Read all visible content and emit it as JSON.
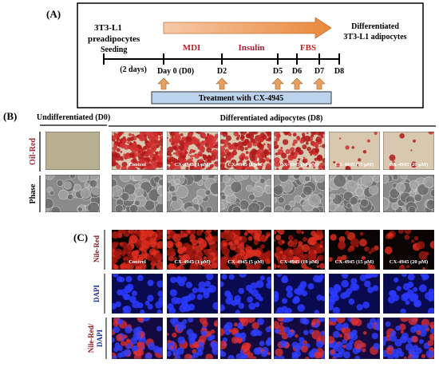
{
  "panel_a": {
    "label": "(A)",
    "start": [
      "3T3-L1",
      "preadipocytes"
    ],
    "end": [
      "Differentiated",
      "3T3-L1 adipocytes"
    ],
    "seeding": "Seeding",
    "interval": "(2 days)",
    "phases": [
      "MDI",
      "Insulin",
      "FBS"
    ],
    "days": [
      "Day 0 (D0)",
      "D2",
      "D5",
      "D6",
      "D7",
      "D8"
    ],
    "treatment": "Treatment with CX-4945"
  },
  "panel_b": {
    "label": "(B)",
    "undifferentiated": "Undifferentiated (D0)",
    "differentiated": "Differentiated adipocytes (D8)",
    "rows": [
      "Oil-Red",
      "Phase"
    ],
    "conditions": [
      "Control",
      "CX-4945 (1 μM)",
      "CX-4945 (5 μM)",
      "CX-4945 (10 μM)",
      "CX-4945 (15 μM)",
      "CX-4945 (20 μM)"
    ]
  },
  "panel_c": {
    "label": "(C)",
    "rows": [
      [
        "Nile-Red"
      ],
      [
        "DAPI"
      ],
      [
        "Nile-Red/",
        "DAPI"
      ]
    ],
    "conditions": [
      "Control",
      "CX-4945 (1 μM)",
      "CX-4945 (5 μM)",
      "CX-4945 (10 μM)",
      "CX-4945 (15 μM)",
      "CX-4945 (20 μM)"
    ]
  }
}
